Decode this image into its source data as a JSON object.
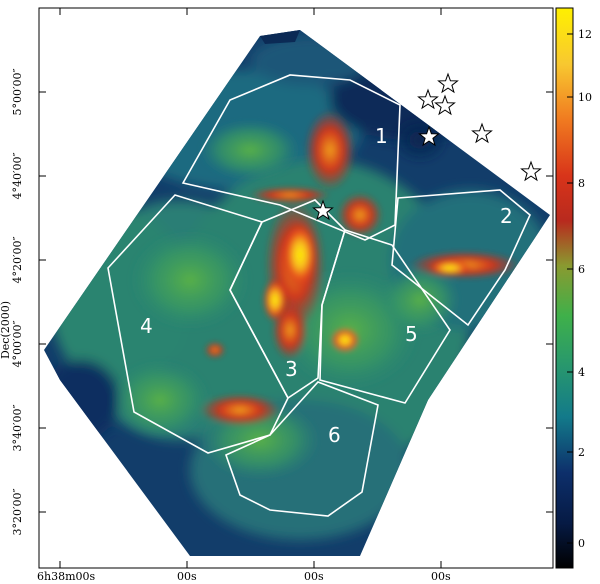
{
  "figure": {
    "y_axis_title": "Dec(2000)",
    "y_ticks": [
      "5°00′00″",
      "4°40′00″",
      "4°20′00″",
      "4°00′00″",
      "3°40′00″",
      "3°20′00″"
    ],
    "x_ticks": [
      "6h38m00s",
      "00s",
      "00s",
      "00s",
      "00s"
    ],
    "colorbar_ticks": [
      "12",
      "10",
      "8",
      "6",
      "4",
      "2",
      "0"
    ],
    "regions": [
      "1",
      "2",
      "3",
      "4",
      "5",
      "6"
    ],
    "colors": {
      "background_field": "#0b2a55",
      "cloud_mid": "#2f8a6e",
      "cloud_bright": "#52b04a",
      "hot_red": "#c8261a",
      "hot_orange": "#f08a20",
      "hot_yellow": "#f8f200",
      "outline": "#ffffff"
    },
    "markers": "open-star-icons"
  }
}
